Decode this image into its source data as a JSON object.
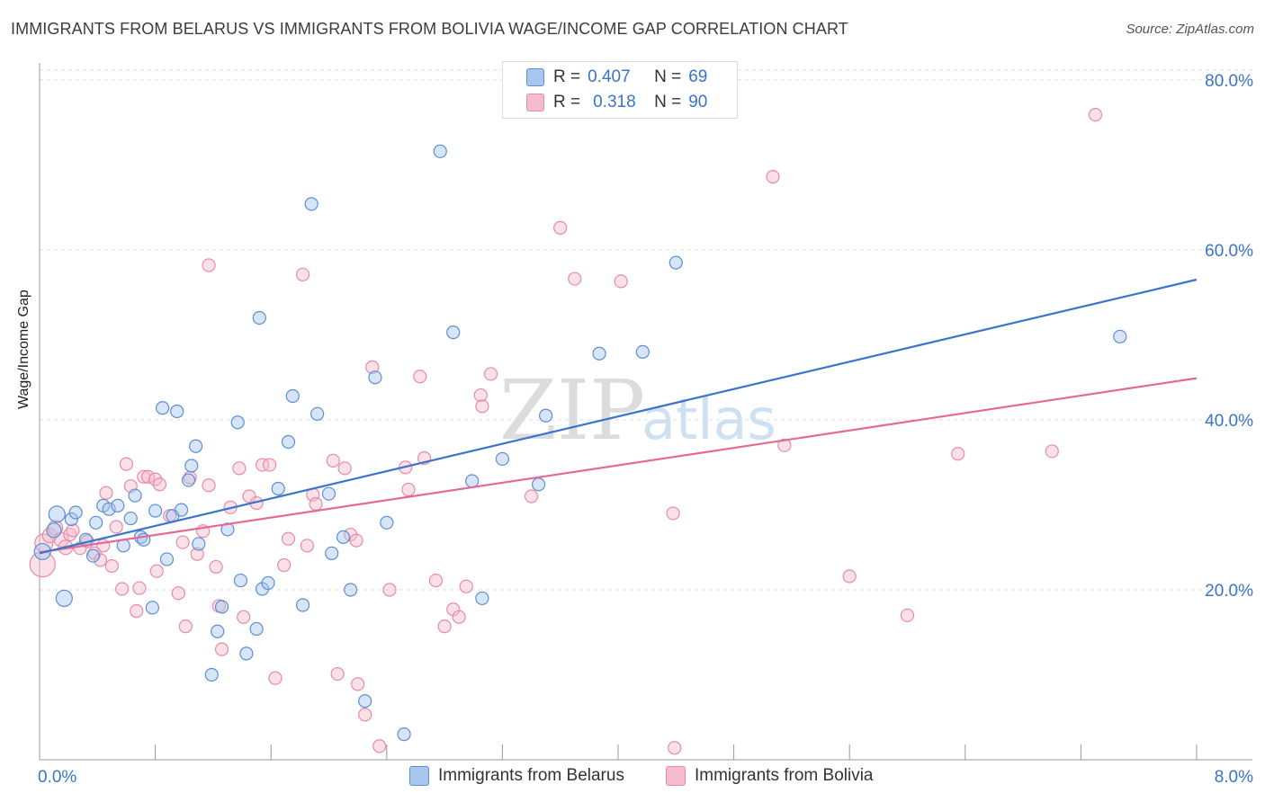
{
  "title": "IMMIGRANTS FROM BELARUS VS IMMIGRANTS FROM BOLIVIA WAGE/INCOME GAP CORRELATION CHART",
  "source": "Source: ZipAtlas.com",
  "watermark": {
    "zip": "ZIP",
    "atlas": "atlas"
  },
  "legend": {
    "belarus": {
      "r_label": "R =",
      "r_value": "0.407",
      "n_label": "N =",
      "n_value": "69"
    },
    "bolivia": {
      "r_label": "R =",
      "r_value": "0.318",
      "n_label": "N =",
      "n_value": "90"
    }
  },
  "bottom_legend": {
    "belarus": "Immigrants from Belarus",
    "bolivia": "Immigrants from Bolivia"
  },
  "colors": {
    "belarus_fill": "#a9c6ee",
    "belarus_stroke": "#5b8fd6",
    "belarus_line": "#3a74cc",
    "bolivia_fill": "#f5bccd",
    "bolivia_stroke": "#e98aa8",
    "bolivia_line": "#e46a96",
    "tick_label": "#3b74c5",
    "grid": "#dddddd"
  },
  "chart_data": {
    "type": "scatter",
    "title": "IMMIGRANTS FROM BELARUS VS IMMIGRANTS FROM BOLIVIA WAGE/INCOME GAP CORRELATION CHART",
    "xlabel": "",
    "ylabel": "Wage/Income Gap",
    "xlim": [
      0,
      8
    ],
    "ylim": [
      0,
      82
    ],
    "x_tick_labels": [
      "0.0%",
      "8.0%"
    ],
    "y_ticks": [
      20,
      40,
      60,
      80
    ],
    "y_tick_labels": [
      "20.0%",
      "40.0%",
      "60.0%",
      "80.0%"
    ],
    "grid": true,
    "legend_position": "top-center",
    "series": [
      {
        "name": "Immigrants from Belarus",
        "trend": {
          "x": [
            0,
            8
          ],
          "y": [
            24.3,
            56.5
          ]
        },
        "points": [
          [
            0.02,
            24.5,
            9
          ],
          [
            0.1,
            27.0,
            8
          ],
          [
            0.12,
            28.9,
            9
          ],
          [
            0.17,
            19.0,
            9
          ],
          [
            0.22,
            28.3,
            7
          ],
          [
            0.25,
            29.1,
            7
          ],
          [
            0.32,
            25.9,
            7
          ],
          [
            0.37,
            24.0,
            7
          ],
          [
            0.39,
            27.9,
            7
          ],
          [
            0.44,
            29.9,
            7
          ],
          [
            0.48,
            29.5,
            7
          ],
          [
            0.54,
            29.9,
            7
          ],
          [
            0.58,
            25.2,
            7
          ],
          [
            0.63,
            28.4,
            7
          ],
          [
            0.66,
            31.1,
            7
          ],
          [
            0.7,
            26.2,
            7
          ],
          [
            0.72,
            25.9,
            7
          ],
          [
            0.78,
            17.9,
            7
          ],
          [
            0.8,
            29.3,
            7
          ],
          [
            0.85,
            41.4,
            7
          ],
          [
            0.88,
            23.6,
            7
          ],
          [
            0.92,
            28.7,
            7
          ],
          [
            0.95,
            41.0,
            7
          ],
          [
            0.98,
            29.4,
            7
          ],
          [
            1.03,
            32.9,
            7
          ],
          [
            1.05,
            34.6,
            7
          ],
          [
            1.08,
            36.9,
            7
          ],
          [
            1.1,
            25.4,
            7
          ],
          [
            1.19,
            10.0,
            7
          ],
          [
            1.23,
            15.1,
            7
          ],
          [
            1.26,
            18.0,
            7
          ],
          [
            1.3,
            27.1,
            7
          ],
          [
            1.37,
            39.7,
            7
          ],
          [
            1.39,
            21.1,
            7
          ],
          [
            1.43,
            12.5,
            7
          ],
          [
            1.5,
            15.4,
            7
          ],
          [
            1.52,
            52.0,
            7
          ],
          [
            1.54,
            20.1,
            7
          ],
          [
            1.58,
            20.8,
            7
          ],
          [
            1.65,
            31.9,
            7
          ],
          [
            1.72,
            37.4,
            7
          ],
          [
            1.75,
            42.8,
            7
          ],
          [
            1.82,
            18.2,
            7
          ],
          [
            1.88,
            65.4,
            7
          ],
          [
            1.92,
            40.7,
            7
          ],
          [
            2.0,
            31.3,
            7
          ],
          [
            2.02,
            24.3,
            7
          ],
          [
            2.1,
            26.2,
            7
          ],
          [
            2.15,
            20.0,
            7
          ],
          [
            2.25,
            6.9,
            7
          ],
          [
            2.32,
            45.0,
            7
          ],
          [
            2.4,
            27.9,
            7
          ],
          [
            2.52,
            3.0,
            7
          ],
          [
            2.77,
            71.6,
            7
          ],
          [
            2.86,
            50.3,
            7
          ],
          [
            2.99,
            32.8,
            7
          ],
          [
            3.06,
            19.0,
            7
          ],
          [
            3.2,
            35.4,
            7
          ],
          [
            3.45,
            32.4,
            7
          ],
          [
            3.5,
            40.5,
            7
          ],
          [
            3.87,
            47.8,
            7
          ],
          [
            4.17,
            48.0,
            7
          ],
          [
            4.4,
            58.5,
            7
          ],
          [
            7.47,
            49.8,
            7
          ]
        ]
      },
      {
        "name": "Immigrants from Bolivia",
        "trend": {
          "x": [
            0,
            8
          ],
          "y": [
            24.4,
            44.9
          ]
        },
        "points": [
          [
            0.02,
            23.0,
            14
          ],
          [
            0.03,
            25.5,
            10
          ],
          [
            0.07,
            26.4,
            8
          ],
          [
            0.11,
            27.3,
            8
          ],
          [
            0.15,
            25.9,
            8
          ],
          [
            0.18,
            25.0,
            8
          ],
          [
            0.21,
            26.5,
            7
          ],
          [
            0.23,
            27.0,
            7
          ],
          [
            0.28,
            24.9,
            7
          ],
          [
            0.33,
            25.7,
            7
          ],
          [
            0.38,
            24.3,
            7
          ],
          [
            0.42,
            23.5,
            7
          ],
          [
            0.44,
            25.2,
            7
          ],
          [
            0.46,
            31.4,
            7
          ],
          [
            0.5,
            22.8,
            7
          ],
          [
            0.53,
            27.4,
            7
          ],
          [
            0.57,
            20.1,
            7
          ],
          [
            0.6,
            34.8,
            7
          ],
          [
            0.63,
            32.2,
            7
          ],
          [
            0.67,
            17.5,
            7
          ],
          [
            0.69,
            20.2,
            7
          ],
          [
            0.72,
            33.3,
            7
          ],
          [
            0.75,
            33.3,
            7
          ],
          [
            0.8,
            33.0,
            7
          ],
          [
            0.81,
            22.2,
            7
          ],
          [
            0.83,
            32.4,
            7
          ],
          [
            0.9,
            28.7,
            7
          ],
          [
            0.96,
            19.6,
            7
          ],
          [
            0.99,
            25.6,
            7
          ],
          [
            1.01,
            15.7,
            7
          ],
          [
            1.04,
            33.2,
            7
          ],
          [
            1.09,
            24.2,
            7
          ],
          [
            1.13,
            26.9,
            7
          ],
          [
            1.17,
            32.3,
            7
          ],
          [
            1.17,
            58.2,
            7
          ],
          [
            1.22,
            22.7,
            7
          ],
          [
            1.24,
            18.1,
            7
          ],
          [
            1.26,
            13.0,
            7
          ],
          [
            1.32,
            29.7,
            7
          ],
          [
            1.38,
            34.3,
            7
          ],
          [
            1.41,
            16.8,
            7
          ],
          [
            1.45,
            31.0,
            7
          ],
          [
            1.5,
            30.2,
            7
          ],
          [
            1.54,
            34.7,
            7
          ],
          [
            1.59,
            34.7,
            7
          ],
          [
            1.63,
            9.6,
            7
          ],
          [
            1.69,
            22.9,
            7
          ],
          [
            1.72,
            26.0,
            7
          ],
          [
            1.82,
            57.1,
            7
          ],
          [
            1.85,
            25.2,
            7
          ],
          [
            1.89,
            31.2,
            7
          ],
          [
            1.91,
            30.1,
            7
          ],
          [
            2.03,
            35.2,
            7
          ],
          [
            2.06,
            10.1,
            7
          ],
          [
            2.11,
            34.3,
            7
          ],
          [
            2.15,
            26.5,
            7
          ],
          [
            2.19,
            25.8,
            7
          ],
          [
            2.2,
            8.9,
            7
          ],
          [
            2.25,
            5.3,
            7
          ],
          [
            2.3,
            46.2,
            7
          ],
          [
            2.35,
            1.6,
            7
          ],
          [
            2.42,
            20.0,
            7
          ],
          [
            2.53,
            34.4,
            7
          ],
          [
            2.55,
            31.8,
            7
          ],
          [
            2.63,
            45.1,
            7
          ],
          [
            2.66,
            35.5,
            7
          ],
          [
            2.74,
            21.1,
            7
          ],
          [
            2.8,
            15.7,
            7
          ],
          [
            2.86,
            17.7,
            7
          ],
          [
            2.9,
            16.8,
            7
          ],
          [
            2.95,
            20.4,
            7
          ],
          [
            3.05,
            42.9,
            7
          ],
          [
            3.06,
            41.6,
            7
          ],
          [
            3.12,
            45.4,
            7
          ],
          [
            3.4,
            31.0,
            7
          ],
          [
            3.6,
            62.6,
            7
          ],
          [
            3.7,
            56.6,
            7
          ],
          [
            4.02,
            56.3,
            7
          ],
          [
            4.38,
            29.0,
            7
          ],
          [
            4.39,
            1.4,
            7
          ],
          [
            5.07,
            68.6,
            7
          ],
          [
            5.15,
            37.0,
            7
          ],
          [
            5.6,
            21.6,
            7
          ],
          [
            6.0,
            17.0,
            7
          ],
          [
            6.35,
            36.0,
            7
          ],
          [
            7.0,
            36.3,
            7
          ],
          [
            7.3,
            75.9,
            7
          ]
        ]
      }
    ]
  }
}
